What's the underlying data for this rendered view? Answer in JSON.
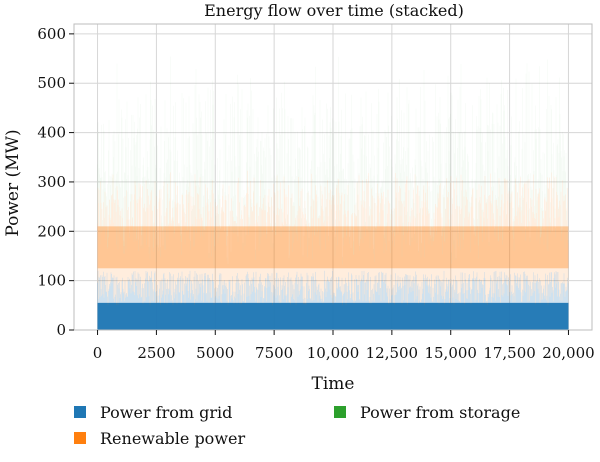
{
  "chart_data": {
    "type": "area",
    "title": "Energy flow over time (stacked)",
    "xlabel": "Time",
    "ylabel": "Power (MW)",
    "xlim": [
      -1000,
      21000
    ],
    "ylim": [
      0,
      620
    ],
    "xticks": [
      0,
      2500,
      5000,
      7500,
      10000,
      12500,
      15000,
      17500,
      20000
    ],
    "xtick_labels": [
      "0",
      "2500",
      "5000",
      "7500",
      "10,000",
      "12,500",
      "15,000",
      "17,500",
      "20,000"
    ],
    "yticks": [
      0,
      100,
      200,
      300,
      400,
      500,
      600
    ],
    "ytick_labels": [
      "0",
      "100",
      "200",
      "300",
      "400",
      "500",
      "600"
    ],
    "grid": true,
    "stacked": true,
    "legend_position": "bottom",
    "series": [
      {
        "name": "Power from grid",
        "color": "#1f77b4",
        "typical_range": [
          50,
          120
        ],
        "mean": 100
      },
      {
        "name": "Renewable power",
        "color": "#ff7f0e",
        "typical_range": [
          80,
          210
        ],
        "mean": 130
      },
      {
        "name": "Power from storage",
        "color": "#2ca02c",
        "typical_range": [
          0,
          250
        ],
        "mean": 70
      }
    ],
    "x_range": [
      0,
      20000
    ],
    "stack_top_max": 590
  }
}
